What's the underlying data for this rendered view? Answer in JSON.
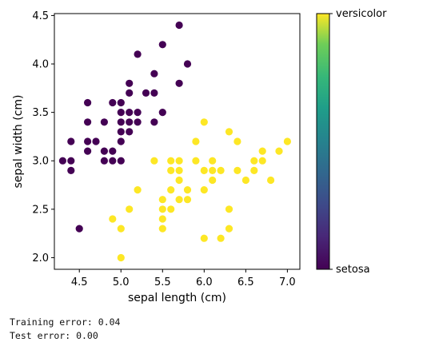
{
  "chart_data": {
    "type": "scatter",
    "xlabel": "sepal length (cm)",
    "ylabel": "sepal width (cm)",
    "xlim": [
      4.2,
      7.15
    ],
    "ylim": [
      1.88,
      4.52
    ],
    "xticks": [
      "4.5",
      "5.0",
      "5.5",
      "6.0",
      "6.5",
      "7.0"
    ],
    "yticks": [
      "2.0",
      "2.5",
      "3.0",
      "3.5",
      "4.0",
      "4.5"
    ],
    "xtick_values": [
      4.5,
      5.0,
      5.5,
      6.0,
      6.5,
      7.0
    ],
    "ytick_values": [
      2.0,
      2.5,
      3.0,
      3.5,
      4.0,
      4.5
    ],
    "grid": false,
    "colorbar": {
      "top_label": "versicolor",
      "bottom_label": "setosa",
      "colormap": "viridis"
    },
    "series": [
      {
        "color": "#440154",
        "points": [
          [
            4.3,
            3.0
          ],
          [
            4.4,
            2.9
          ],
          [
            4.4,
            3.0
          ],
          [
            4.4,
            3.2
          ],
          [
            4.5,
            2.3
          ],
          [
            4.6,
            3.1
          ],
          [
            4.6,
            3.2
          ],
          [
            4.6,
            3.4
          ],
          [
            4.6,
            3.6
          ],
          [
            4.7,
            3.2
          ],
          [
            4.8,
            3.0
          ],
          [
            4.8,
            3.1
          ],
          [
            4.8,
            3.4
          ],
          [
            4.9,
            3.0
          ],
          [
            4.9,
            3.1
          ],
          [
            4.9,
            3.6
          ],
          [
            5.0,
            3.0
          ],
          [
            5.0,
            3.2
          ],
          [
            5.0,
            3.3
          ],
          [
            5.0,
            3.4
          ],
          [
            5.0,
            3.5
          ],
          [
            5.0,
            3.6
          ],
          [
            5.1,
            3.3
          ],
          [
            5.1,
            3.4
          ],
          [
            5.1,
            3.5
          ],
          [
            5.1,
            3.7
          ],
          [
            5.1,
            3.8
          ],
          [
            5.2,
            3.4
          ],
          [
            5.2,
            3.5
          ],
          [
            5.2,
            4.1
          ],
          [
            5.3,
            3.7
          ],
          [
            5.4,
            3.4
          ],
          [
            5.4,
            3.7
          ],
          [
            5.4,
            3.9
          ],
          [
            5.5,
            3.5
          ],
          [
            5.5,
            4.2
          ],
          [
            5.7,
            3.8
          ],
          [
            5.7,
            4.4
          ],
          [
            5.8,
            4.0
          ]
        ]
      },
      {
        "color": "#fde725",
        "points": [
          [
            4.9,
            2.4
          ],
          [
            5.0,
            2.0
          ],
          [
            5.0,
            2.3
          ],
          [
            5.1,
            2.5
          ],
          [
            5.2,
            2.7
          ],
          [
            5.4,
            3.0
          ],
          [
            5.5,
            2.3
          ],
          [
            5.5,
            2.4
          ],
          [
            5.5,
            2.5
          ],
          [
            5.5,
            2.6
          ],
          [
            5.6,
            2.5
          ],
          [
            5.6,
            2.7
          ],
          [
            5.6,
            2.9
          ],
          [
            5.6,
            3.0
          ],
          [
            5.7,
            2.6
          ],
          [
            5.7,
            2.8
          ],
          [
            5.7,
            2.9
          ],
          [
            5.7,
            3.0
          ],
          [
            5.8,
            2.6
          ],
          [
            5.8,
            2.7
          ],
          [
            5.9,
            3.0
          ],
          [
            5.9,
            3.2
          ],
          [
            6.0,
            2.2
          ],
          [
            6.0,
            2.7
          ],
          [
            6.0,
            2.9
          ],
          [
            6.0,
            3.4
          ],
          [
            6.1,
            2.8
          ],
          [
            6.1,
            2.9
          ],
          [
            6.1,
            3.0
          ],
          [
            6.2,
            2.2
          ],
          [
            6.2,
            2.9
          ],
          [
            6.3,
            2.3
          ],
          [
            6.3,
            2.5
          ],
          [
            6.3,
            3.3
          ],
          [
            6.4,
            2.9
          ],
          [
            6.4,
            3.2
          ],
          [
            6.5,
            2.8
          ],
          [
            6.6,
            2.9
          ],
          [
            6.6,
            3.0
          ],
          [
            6.7,
            3.0
          ],
          [
            6.7,
            3.1
          ],
          [
            6.8,
            2.8
          ],
          [
            6.9,
            3.1
          ],
          [
            7.0,
            3.2
          ]
        ]
      }
    ]
  },
  "output": {
    "training_error": "Training error: 0.04",
    "test_error": "Test error: 0.00"
  }
}
